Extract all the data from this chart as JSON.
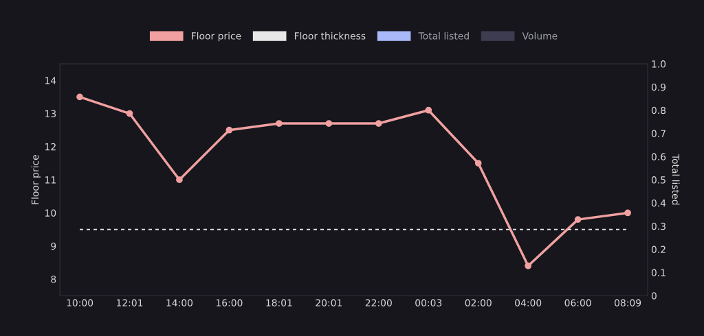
{
  "chart_data": {
    "type": "line",
    "categories": [
      "10:00",
      "12:01",
      "14:00",
      "16:00",
      "18:01",
      "20:01",
      "22:00",
      "00:03",
      "02:00",
      "04:00",
      "06:00",
      "08:09"
    ],
    "series": [
      {
        "name": "Floor price",
        "color": "#f0a0a0",
        "marker": "circle",
        "values": [
          13.5,
          13.0,
          11.0,
          12.5,
          12.7,
          12.7,
          12.7,
          13.1,
          11.5,
          8.4,
          9.8,
          10.0
        ]
      },
      {
        "name": "Floor thickness",
        "color": "#e8e8e8",
        "line_style": "dashed",
        "marker": "none",
        "values": [
          9.5,
          9.5,
          9.5,
          9.5,
          9.5,
          9.5,
          9.5,
          9.5,
          9.5,
          9.5,
          9.5,
          9.5
        ]
      },
      {
        "name": "Total listed",
        "color": "#a8b8f8",
        "values": [
          null,
          null,
          null,
          null,
          null,
          null,
          null,
          null,
          null,
          null,
          null,
          null
        ]
      },
      {
        "name": "Volume",
        "color": "#3e3c50",
        "values": [
          null,
          null,
          null,
          null,
          null,
          null,
          null,
          null,
          null,
          null,
          null,
          null
        ]
      }
    ],
    "ylabel": "Floor price",
    "y2label": "Total listed",
    "ylim": [
      7.5,
      14.5
    ],
    "yticks": [
      8,
      9,
      10,
      11,
      12,
      13,
      14
    ],
    "y2lim": [
      0,
      1
    ],
    "y2ticks": [
      0,
      0.1,
      0.2,
      0.3,
      0.4,
      0.5,
      0.6,
      0.7,
      0.8,
      0.9,
      {
        "value": 1,
        "label": "1.0"
      }
    ],
    "grid": false,
    "legend": "top"
  }
}
